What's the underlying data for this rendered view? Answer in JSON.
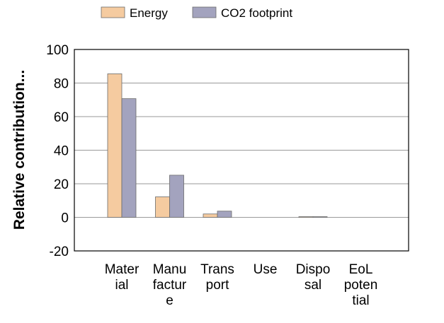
{
  "chart_data": {
    "type": "bar",
    "title": "",
    "xlabel": "",
    "ylabel": "Relative  contribution...",
    "ylim": [
      -20,
      100
    ],
    "yticks": [
      "100",
      "80",
      "60",
      "40",
      "20",
      "0",
      "-20"
    ],
    "yticks_values": [
      100,
      80,
      60,
      40,
      20,
      0,
      -20
    ],
    "grid": true,
    "legend_position": "top",
    "categories": [
      [
        "Mater",
        "ial"
      ],
      [
        "Manu",
        "factur",
        "e"
      ],
      [
        "Trans",
        "port"
      ],
      [
        "Use"
      ],
      [
        "Dispo",
        "sal"
      ],
      [
        "EoL",
        "poten",
        "tial"
      ]
    ],
    "series": [
      {
        "name": "Energy",
        "color": "#f5cba0",
        "values": [
          85.5,
          12.2,
          2,
          0,
          0.4,
          0
        ]
      },
      {
        "name": "CO2 footprint",
        "color": "#a3a3be",
        "values": [
          70.7,
          25.1,
          3.7,
          0,
          0.4,
          0
        ]
      }
    ]
  }
}
